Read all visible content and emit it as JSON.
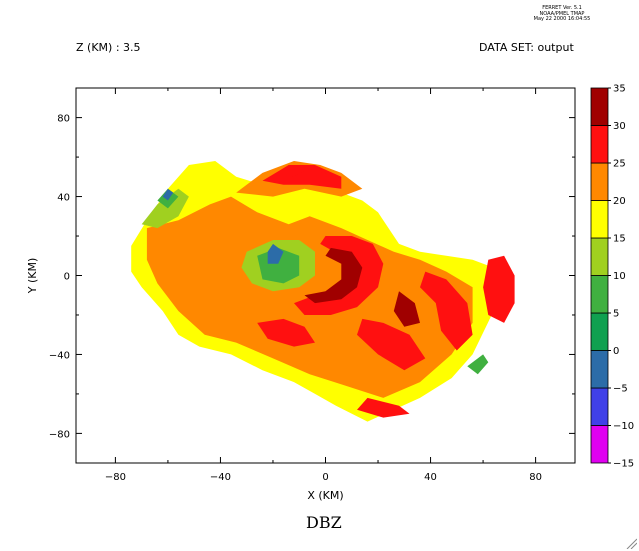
{
  "header": {
    "ferret_line1": "FERRET Ver. 5.1",
    "ferret_line2": "NOAA/PMEL TMAP",
    "ferret_line3": "May 22 2000 16:04:55",
    "z_label": "Z (KM) : 3.5",
    "dataset_label": "DATA SET: output"
  },
  "chart_data": {
    "type": "heatmap",
    "title": "DBZ",
    "xlabel": "X (KM)",
    "ylabel": "Y (KM)",
    "xlim": [
      -95,
      95
    ],
    "ylim": [
      -95,
      95
    ],
    "x_ticks": [
      -80,
      -40,
      0,
      40,
      80
    ],
    "y_ticks": [
      80,
      40,
      0,
      -40,
      -80
    ],
    "x_tick_labels": [
      "−80",
      "−40",
      "0",
      "40",
      "80"
    ],
    "y_tick_labels": [
      "80",
      "40",
      "0",
      "−40",
      "−80"
    ],
    "colorbar": {
      "levels": [
        35,
        30,
        25,
        20,
        15,
        10,
        5,
        0,
        -5,
        -10,
        -15
      ],
      "level_labels": [
        "35",
        "30",
        "25",
        "20",
        "15",
        "10",
        "5",
        "0",
        "−5",
        "−10",
        "−15"
      ],
      "colors": [
        "#e000f0",
        "#4040e8",
        "#2c6ca8",
        "#10a050",
        "#40b040",
        "#a0d020",
        "#ffff00",
        "#ff8800",
        "#ff1010",
        "#a00000"
      ]
    },
    "regions": [
      {
        "dbz": 17,
        "points": [
          [
            -74,
            15
          ],
          [
            -68,
            28
          ],
          [
            -60,
            44
          ],
          [
            -52,
            56
          ],
          [
            -42,
            58
          ],
          [
            -34,
            50
          ],
          [
            -24,
            46
          ],
          [
            -10,
            48
          ],
          [
            2,
            44
          ],
          [
            14,
            38
          ],
          [
            20,
            32
          ],
          [
            28,
            16
          ],
          [
            36,
            12
          ],
          [
            46,
            10
          ],
          [
            56,
            8
          ],
          [
            64,
            4
          ],
          [
            64,
            -18
          ],
          [
            56,
            -40
          ],
          [
            48,
            -52
          ],
          [
            36,
            -62
          ],
          [
            26,
            -68
          ],
          [
            16,
            -74
          ],
          [
            4,
            -66
          ],
          [
            -4,
            -60
          ],
          [
            -12,
            -54
          ],
          [
            -24,
            -48
          ],
          [
            -36,
            -40
          ],
          [
            -48,
            -36
          ],
          [
            -56,
            -30
          ],
          [
            -62,
            -18
          ],
          [
            -70,
            -6
          ],
          [
            -74,
            2
          ]
        ]
      },
      {
        "dbz": 22,
        "points": [
          [
            -68,
            24
          ],
          [
            -56,
            28
          ],
          [
            -44,
            36
          ],
          [
            -36,
            40
          ],
          [
            -26,
            32
          ],
          [
            -14,
            26
          ],
          [
            -6,
            30
          ],
          [
            6,
            24
          ],
          [
            16,
            18
          ],
          [
            26,
            12
          ],
          [
            36,
            8
          ],
          [
            46,
            2
          ],
          [
            56,
            -6
          ],
          [
            56,
            -24
          ],
          [
            48,
            -40
          ],
          [
            36,
            -54
          ],
          [
            22,
            -62
          ],
          [
            8,
            -56
          ],
          [
            -6,
            -50
          ],
          [
            -20,
            -42
          ],
          [
            -34,
            -34
          ],
          [
            -46,
            -30
          ],
          [
            -56,
            -18
          ],
          [
            -64,
            -4
          ],
          [
            -68,
            8
          ]
        ]
      },
      {
        "dbz": 22,
        "points": [
          [
            -34,
            42
          ],
          [
            -24,
            52
          ],
          [
            -12,
            58
          ],
          [
            -2,
            56
          ],
          [
            6,
            52
          ],
          [
            14,
            44
          ],
          [
            6,
            40
          ],
          [
            -8,
            44
          ],
          [
            -20,
            40
          ]
        ]
      },
      {
        "dbz": 27,
        "points": [
          [
            -24,
            48
          ],
          [
            -14,
            56
          ],
          [
            -4,
            56
          ],
          [
            6,
            50
          ],
          [
            6,
            44
          ],
          [
            -6,
            46
          ],
          [
            -16,
            46
          ]
        ]
      },
      {
        "dbz": 27,
        "points": [
          [
            0,
            20
          ],
          [
            10,
            20
          ],
          [
            18,
            16
          ],
          [
            22,
            6
          ],
          [
            20,
            -6
          ],
          [
            12,
            -16
          ],
          [
            2,
            -20
          ],
          [
            -8,
            -20
          ],
          [
            -12,
            -14
          ],
          [
            -4,
            -10
          ],
          [
            6,
            -6
          ],
          [
            12,
            2
          ],
          [
            6,
            10
          ],
          [
            -2,
            16
          ]
        ]
      },
      {
        "dbz": 27,
        "points": [
          [
            38,
            2
          ],
          [
            46,
            -2
          ],
          [
            54,
            -14
          ],
          [
            56,
            -30
          ],
          [
            50,
            -38
          ],
          [
            44,
            -28
          ],
          [
            42,
            -14
          ],
          [
            36,
            -6
          ]
        ]
      },
      {
        "dbz": 27,
        "points": [
          [
            62,
            8
          ],
          [
            68,
            10
          ],
          [
            72,
            0
          ],
          [
            72,
            -14
          ],
          [
            68,
            -24
          ],
          [
            62,
            -20
          ],
          [
            60,
            -6
          ]
        ]
      },
      {
        "dbz": 27,
        "points": [
          [
            -26,
            -24
          ],
          [
            -16,
            -22
          ],
          [
            -8,
            -26
          ],
          [
            -4,
            -34
          ],
          [
            -12,
            -36
          ],
          [
            -22,
            -32
          ]
        ]
      },
      {
        "dbz": 27,
        "points": [
          [
            14,
            -22
          ],
          [
            22,
            -24
          ],
          [
            32,
            -30
          ],
          [
            38,
            -42
          ],
          [
            30,
            -48
          ],
          [
            20,
            -40
          ],
          [
            12,
            -30
          ]
        ]
      },
      {
        "dbz": 27,
        "points": [
          [
            16,
            -62
          ],
          [
            28,
            -66
          ],
          [
            32,
            -70
          ],
          [
            22,
            -72
          ],
          [
            12,
            -68
          ]
        ]
      },
      {
        "dbz": 27,
        "points": [
          [
            -16,
            48
          ],
          [
            -6,
            54
          ],
          [
            4,
            50
          ],
          [
            2,
            46
          ],
          [
            -8,
            48
          ]
        ]
      },
      {
        "dbz": 32,
        "points": [
          [
            2,
            14
          ],
          [
            10,
            12
          ],
          [
            14,
            4
          ],
          [
            12,
            -6
          ],
          [
            6,
            -12
          ],
          [
            -4,
            -14
          ],
          [
            -8,
            -10
          ],
          [
            0,
            -8
          ],
          [
            6,
            -2
          ],
          [
            6,
            6
          ],
          [
            0,
            10
          ]
        ]
      },
      {
        "dbz": 32,
        "points": [
          [
            28,
            -8
          ],
          [
            34,
            -14
          ],
          [
            36,
            -24
          ],
          [
            30,
            -26
          ],
          [
            26,
            -18
          ]
        ]
      },
      {
        "dbz": 12,
        "points": [
          [
            -30,
            12
          ],
          [
            -20,
            18
          ],
          [
            -10,
            18
          ],
          [
            -4,
            12
          ],
          [
            -4,
            0
          ],
          [
            -10,
            -6
          ],
          [
            -20,
            -8
          ],
          [
            -28,
            -4
          ],
          [
            -32,
            4
          ]
        ]
      },
      {
        "dbz": 12,
        "points": [
          [
            -70,
            26
          ],
          [
            -64,
            36
          ],
          [
            -56,
            44
          ],
          [
            -52,
            40
          ],
          [
            -56,
            30
          ],
          [
            -64,
            24
          ]
        ]
      },
      {
        "dbz": 7,
        "points": [
          [
            -26,
            10
          ],
          [
            -18,
            14
          ],
          [
            -10,
            10
          ],
          [
            -10,
            0
          ],
          [
            -16,
            -4
          ],
          [
            -24,
            -2
          ]
        ]
      },
      {
        "dbz": 7,
        "points": [
          [
            -64,
            38
          ],
          [
            -60,
            44
          ],
          [
            -56,
            40
          ],
          [
            -60,
            34
          ]
        ]
      },
      {
        "dbz": 7,
        "points": [
          [
            54,
            -46
          ],
          [
            60,
            -40
          ],
          [
            62,
            -44
          ],
          [
            58,
            -50
          ]
        ]
      },
      {
        "dbz": -3,
        "points": [
          [
            -22,
            12
          ],
          [
            -20,
            16
          ],
          [
            -16,
            12
          ],
          [
            -18,
            6
          ],
          [
            -22,
            6
          ]
        ]
      },
      {
        "dbz": -3,
        "points": [
          [
            -62,
            40
          ],
          [
            -60,
            44
          ],
          [
            -58,
            42
          ],
          [
            -60,
            38
          ]
        ]
      }
    ]
  }
}
